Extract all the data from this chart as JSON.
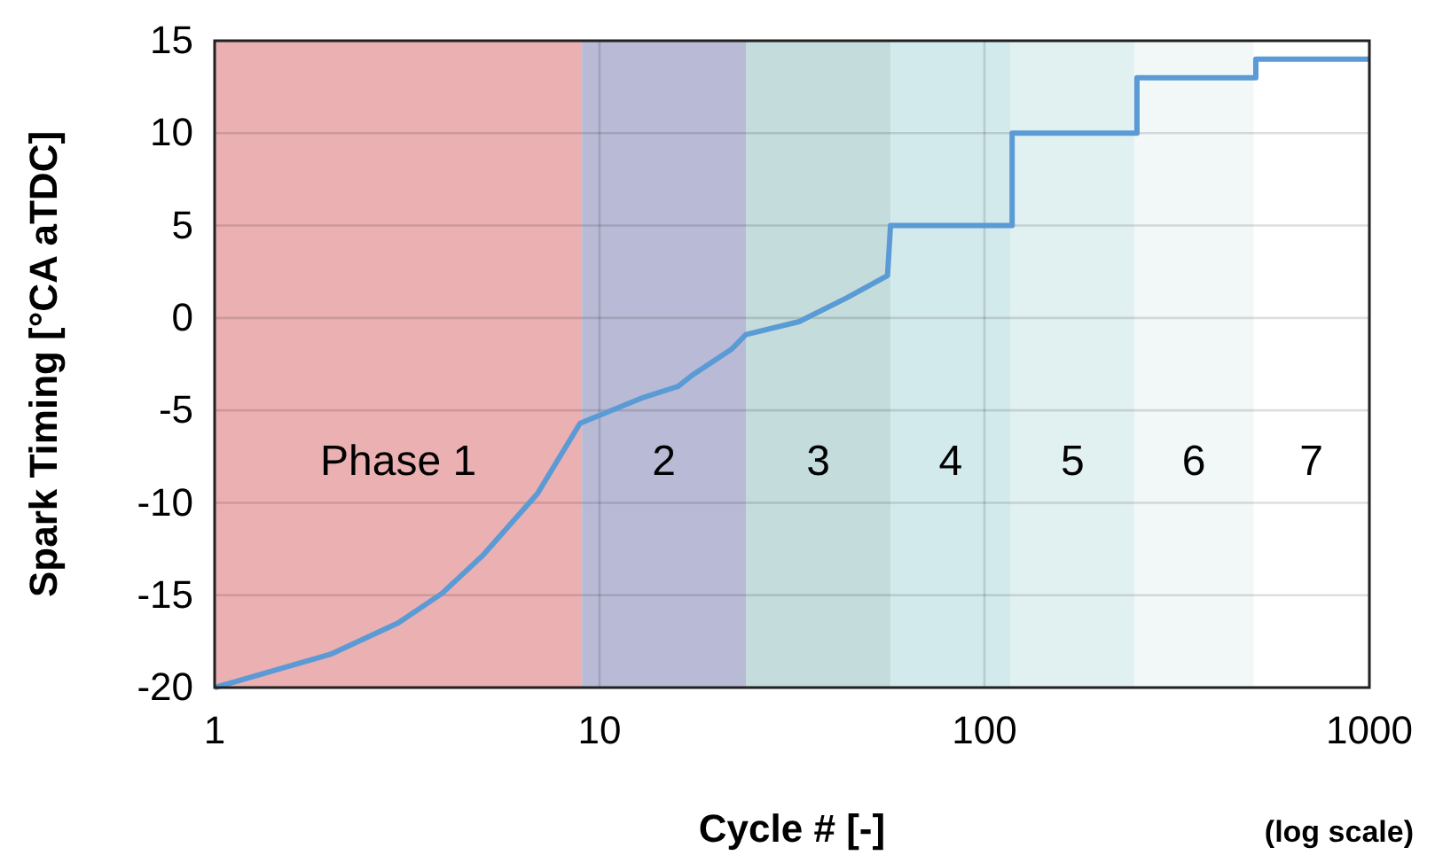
{
  "chart_data": {
    "type": "line",
    "xlabel": "Cycle # [-]",
    "ylabel": "Spark Timing  [°CA aTDC]",
    "annotations": [
      "(log scale)",
      "7"
    ],
    "log": "x",
    "grid": true,
    "xlim": [
      1,
      1000
    ],
    "xticks": [
      1,
      10,
      100,
      1000
    ],
    "ylim": [
      -20,
      15
    ],
    "yticks": [
      -20,
      -15,
      -10,
      -5,
      0,
      5,
      10,
      15
    ],
    "bands": [
      {
        "axis": "x",
        "from": 1,
        "to": 9,
        "label": "Phase 1",
        "color": "#ebb0b2"
      },
      {
        "axis": "x",
        "from": 9,
        "to": 24,
        "label": "2",
        "color": "#b9bbd6"
      },
      {
        "axis": "x",
        "from": 24,
        "to": 57,
        "label": "3",
        "color": "#c4dcdc"
      },
      {
        "axis": "x",
        "from": 57,
        "to": 117,
        "label": "4",
        "color": "#d3eaec"
      },
      {
        "axis": "x",
        "from": 117,
        "to": 245,
        "label": "5",
        "color": "#e1f0f0"
      },
      {
        "axis": "x",
        "from": 245,
        "to": 500,
        "label": "6",
        "color": "#f2f7f7"
      }
    ],
    "series": [
      {
        "color": "#5b9bd5",
        "x": [
          1,
          2,
          3,
          3.9,
          5,
          6.9,
          8.9,
          13,
          16,
          17.4,
          22,
          24,
          33,
          44,
          55,
          56,
          57,
          118,
          118,
          249,
          249,
          507,
          507,
          1000
        ],
        "values": [
          -20,
          -18.2,
          -16.5,
          -14.9,
          -12.8,
          -9.5,
          -5.7,
          -4.3,
          -3.7,
          -3.1,
          -1.7,
          -0.9,
          -0.2,
          1.1,
          2.2,
          2.3,
          5,
          5,
          10,
          10,
          13,
          13,
          14,
          14
        ]
      }
    ]
  }
}
